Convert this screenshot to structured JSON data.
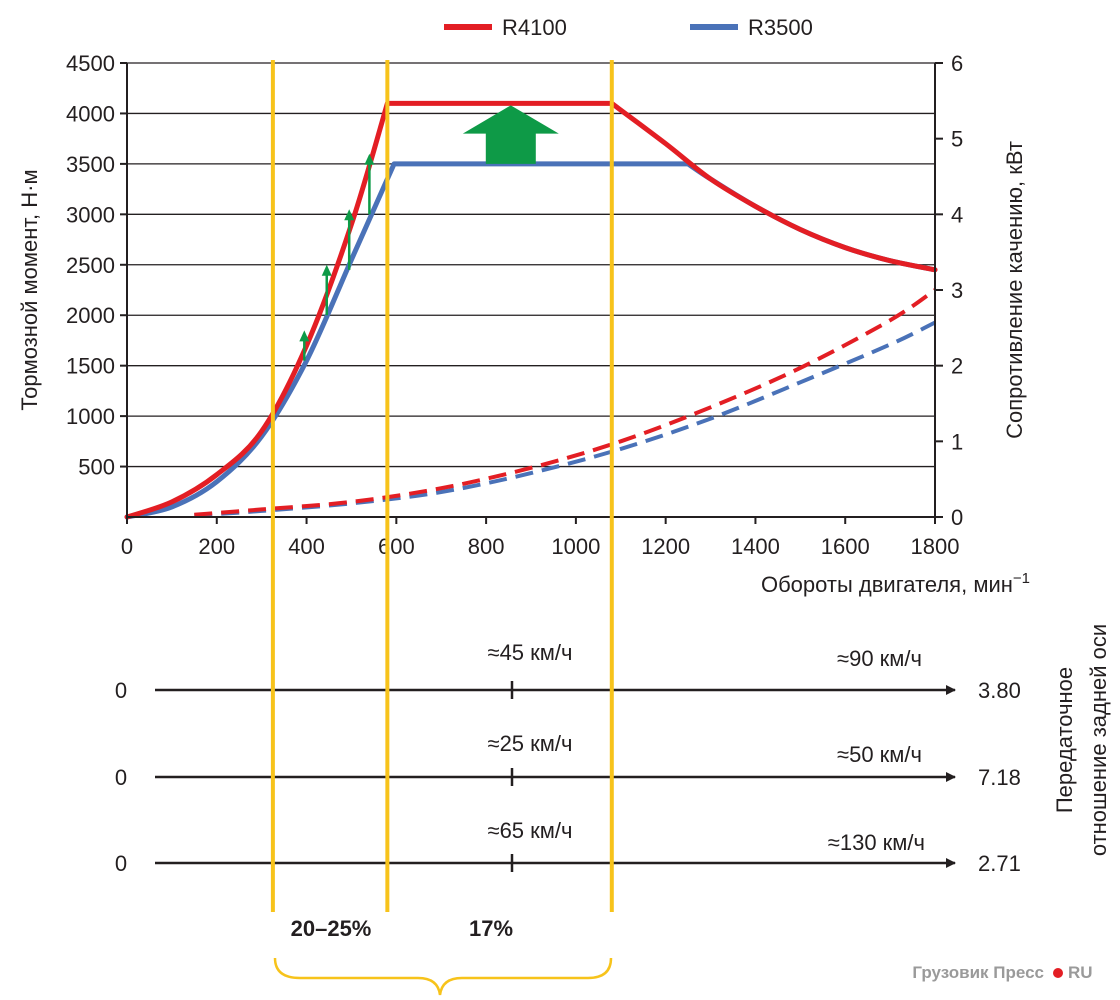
{
  "chart_data": {
    "type": "line",
    "x": [
      0,
      100,
      200,
      300,
      400,
      500,
      580,
      600,
      700,
      800,
      900,
      1000,
      1080,
      1100,
      1200,
      1250,
      1300,
      1400,
      1500,
      1600,
      1700,
      1800
    ],
    "xlabel": "Обороты двигателя, мин",
    "xlabel_sup": "−1",
    "xlim": [
      0,
      1800
    ],
    "x_ticks": [
      "0",
      "200",
      "400",
      "600",
      "800",
      "1000",
      "1200",
      "1400",
      "1600",
      "1800"
    ],
    "ylabel": "Тормозной момент, Н·м",
    "ylim": [
      0,
      4500
    ],
    "y_ticks": [
      "500",
      "1000",
      "1500",
      "2000",
      "2500",
      "3000",
      "3500",
      "4000",
      "4500"
    ],
    "y2label": "Сопротивление качению, кВт",
    "y2lim": [
      0,
      6
    ],
    "y2_ticks": [
      "0",
      "1",
      "2",
      "3",
      "4",
      "5",
      "6"
    ],
    "legend_position": "top",
    "series": [
      {
        "name": "R4100",
        "color": "#e31e24",
        "axis": "left",
        "points": [
          [
            0,
            0
          ],
          [
            100,
            150
          ],
          [
            200,
            420
          ],
          [
            300,
            850
          ],
          [
            400,
            1700
          ],
          [
            500,
            2900
          ],
          [
            580,
            4100
          ],
          [
            1080,
            4100
          ],
          [
            1200,
            3700
          ],
          [
            1300,
            3350
          ],
          [
            1400,
            3080
          ],
          [
            1500,
            2850
          ],
          [
            1600,
            2670
          ],
          [
            1700,
            2540
          ],
          [
            1800,
            2450
          ]
        ]
      },
      {
        "name": "R3500",
        "color": "#4a72b8",
        "axis": "left",
        "points": [
          [
            0,
            0
          ],
          [
            100,
            100
          ],
          [
            200,
            350
          ],
          [
            300,
            800
          ],
          [
            400,
            1550
          ],
          [
            500,
            2550
          ],
          [
            595,
            3500
          ],
          [
            1250,
            3500
          ],
          [
            1300,
            3350
          ],
          [
            1400,
            3080
          ],
          [
            1500,
            2850
          ],
          [
            1600,
            2670
          ],
          [
            1700,
            2540
          ],
          [
            1800,
            2450
          ]
        ]
      },
      {
        "name": "",
        "color": "#e31e24",
        "axis": "right",
        "dashed": true,
        "points": [
          [
            150,
            0.03
          ],
          [
            300,
            0.1
          ],
          [
            500,
            0.2
          ],
          [
            700,
            0.38
          ],
          [
            900,
            0.65
          ],
          [
            1100,
            1.0
          ],
          [
            1300,
            1.45
          ],
          [
            1500,
            1.97
          ],
          [
            1700,
            2.6
          ],
          [
            1800,
            3.0
          ]
        ]
      },
      {
        "name": "",
        "color": "#4a72b8",
        "axis": "right",
        "dashed": true,
        "points": [
          [
            150,
            0.02
          ],
          [
            300,
            0.08
          ],
          [
            500,
            0.18
          ],
          [
            700,
            0.33
          ],
          [
            900,
            0.58
          ],
          [
            1100,
            0.9
          ],
          [
            1300,
            1.3
          ],
          [
            1500,
            1.78
          ],
          [
            1700,
            2.28
          ],
          [
            1800,
            2.57
          ]
        ]
      }
    ],
    "vertical_markers_rpm": [
      325,
      580,
      1080
    ],
    "torque_increase_arrows": [
      {
        "rpm": 395,
        "from": 1550,
        "to": 1850
      },
      {
        "rpm": 445,
        "from": 2000,
        "to": 2500
      },
      {
        "rpm": 495,
        "from": 2450,
        "to": 3050
      },
      {
        "rpm": 540,
        "from": 3000,
        "to": 3600
      }
    ],
    "big_arrow": {
      "rpm": 855,
      "from": 3500,
      "to": 4100,
      "color": "#0e9a47"
    },
    "speed_axes_title": "Передаточное\nотношение задней оси",
    "speed_axes": [
      {
        "start": "0",
        "mid_label": "≈45 км/ч",
        "end_label": "≈90 км/ч",
        "ratio": "3.80"
      },
      {
        "start": "0",
        "mid_label": "≈25 км/ч",
        "end_label": "≈50 км/ч",
        "ratio": "7.18"
      },
      {
        "start": "0",
        "mid_label": "≈65 км/ч",
        "end_label": "≈130 км/ч",
        "ratio": "2.71"
      }
    ],
    "percent_labels": [
      "20–25%",
      "17%"
    ],
    "marker_color": "#f7c31b"
  },
  "watermark": "Грузовик Пресс",
  "watermark_suffix": "RU"
}
